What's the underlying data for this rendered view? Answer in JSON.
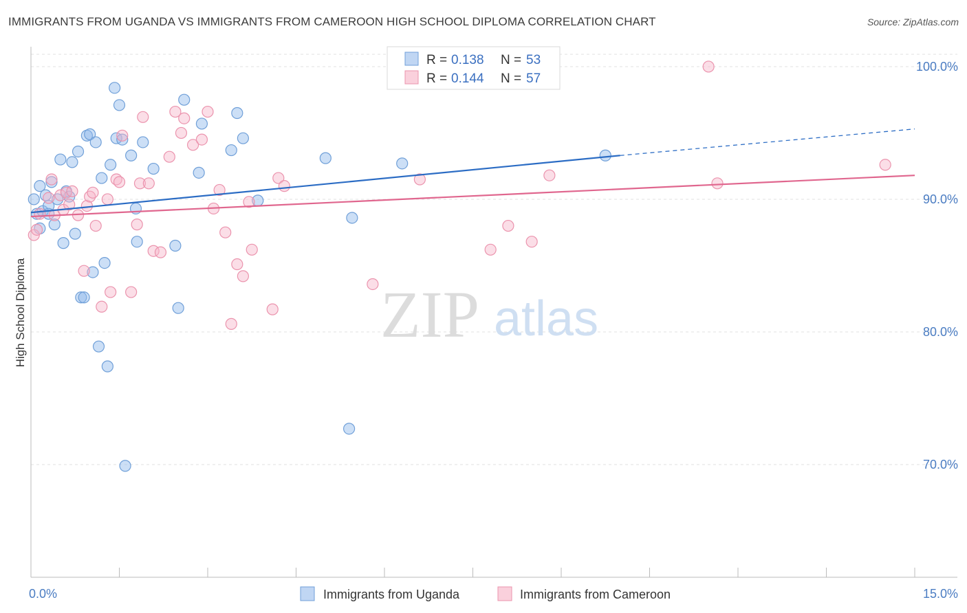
{
  "title": "IMMIGRANTS FROM UGANDA VS IMMIGRANTS FROM CAMEROON HIGH SCHOOL DIPLOMA CORRELATION CHART",
  "source": "Source: ZipAtlas.com",
  "watermark": {
    "zip": "ZIP",
    "atlas": "atlas"
  },
  "chart_data": {
    "type": "scatter",
    "ylabel": "High School Diploma",
    "xlim": [
      0,
      15
    ],
    "ylim": [
      61.5,
      101.5
    ],
    "x_tick_labels": [
      {
        "value": 0,
        "label": "0.0%"
      },
      {
        "value": 15,
        "label": "15.0%"
      }
    ],
    "y_tick_labels": [
      {
        "value": 100,
        "label": "100.0%"
      },
      {
        "value": 90,
        "label": "90.0%"
      },
      {
        "value": 80,
        "label": "80.0%"
      },
      {
        "value": 70,
        "label": "70.0%"
      }
    ],
    "legend_position": "bottom-center",
    "stats_box_position": "top-center",
    "series": [
      {
        "name": "Immigrants from Uganda",
        "color": "#8fb7ea",
        "stroke": "#6f9fd8",
        "line_color": "#2b6cc4",
        "r_label": "R =",
        "r_value": "0.138",
        "n_label": "N =",
        "n_value": "53",
        "trend": {
          "x": [
            0,
            10
          ],
          "y": [
            89.0,
            93.3
          ],
          "dashed_to": [
            15,
            95.3
          ]
        },
        "points": [
          [
            0.05,
            90.0
          ],
          [
            0.1,
            88.9
          ],
          [
            0.15,
            91.0
          ],
          [
            0.2,
            89.1
          ],
          [
            0.25,
            90.3
          ],
          [
            0.3,
            89.5
          ],
          [
            0.35,
            91.3
          ],
          [
            0.4,
            88.1
          ],
          [
            0.45,
            90.0
          ],
          [
            0.5,
            93.0
          ],
          [
            0.55,
            86.7
          ],
          [
            0.6,
            90.6
          ],
          [
            0.65,
            90.2
          ],
          [
            0.7,
            92.8
          ],
          [
            0.75,
            87.4
          ],
          [
            0.8,
            93.6
          ],
          [
            0.85,
            82.6
          ],
          [
            0.9,
            82.6
          ],
          [
            0.95,
            94.8
          ],
          [
            1.0,
            94.9
          ],
          [
            1.1,
            94.3
          ],
          [
            1.15,
            78.9
          ],
          [
            1.2,
            91.6
          ],
          [
            1.25,
            85.2
          ],
          [
            1.3,
            77.4
          ],
          [
            1.35,
            92.6
          ],
          [
            1.42,
            98.4
          ],
          [
            1.45,
            94.6
          ],
          [
            1.5,
            97.1
          ],
          [
            1.55,
            94.5
          ],
          [
            1.6,
            69.9
          ],
          [
            1.7,
            93.3
          ],
          [
            1.78,
            89.3
          ],
          [
            1.8,
            86.8
          ],
          [
            1.9,
            94.3
          ],
          [
            2.08,
            92.3
          ],
          [
            2.45,
            86.5
          ],
          [
            2.5,
            81.8
          ],
          [
            2.6,
            97.5
          ],
          [
            2.85,
            92.0
          ],
          [
            2.9,
            95.7
          ],
          [
            3.4,
            93.7
          ],
          [
            3.5,
            96.5
          ],
          [
            3.6,
            94.6
          ],
          [
            3.85,
            89.9
          ],
          [
            5.0,
            93.1
          ],
          [
            5.4,
            72.7
          ],
          [
            5.45,
            88.6
          ],
          [
            6.3,
            92.7
          ],
          [
            9.75,
            93.3
          ],
          [
            1.05,
            84.5
          ],
          [
            0.15,
            87.8
          ],
          [
            0.3,
            88.9
          ]
        ]
      },
      {
        "name": "Immigrants from Cameroon",
        "color": "#f7b6c9",
        "stroke": "#eb93ad",
        "line_color": "#e0668e",
        "r_label": "R =",
        "r_value": "0.144",
        "n_label": "N =",
        "n_value": "57",
        "trend": {
          "x": [
            0,
            15
          ],
          "y": [
            88.7,
            91.8
          ]
        },
        "points": [
          [
            0.05,
            87.3
          ],
          [
            0.1,
            87.7
          ],
          [
            0.15,
            88.9
          ],
          [
            0.3,
            90.1
          ],
          [
            0.35,
            91.5
          ],
          [
            0.4,
            88.8
          ],
          [
            0.5,
            90.3
          ],
          [
            0.55,
            89.2
          ],
          [
            0.6,
            90.5
          ],
          [
            0.65,
            89.6
          ],
          [
            0.7,
            90.6
          ],
          [
            0.8,
            88.8
          ],
          [
            0.9,
            84.6
          ],
          [
            0.95,
            89.5
          ],
          [
            1.0,
            90.2
          ],
          [
            1.05,
            90.5
          ],
          [
            1.1,
            88.0
          ],
          [
            1.2,
            81.9
          ],
          [
            1.3,
            90.0
          ],
          [
            1.35,
            83.0
          ],
          [
            1.45,
            91.5
          ],
          [
            1.5,
            91.3
          ],
          [
            1.55,
            94.8
          ],
          [
            1.7,
            83.0
          ],
          [
            1.8,
            88.1
          ],
          [
            1.85,
            91.2
          ],
          [
            1.9,
            96.2
          ],
          [
            2.0,
            91.2
          ],
          [
            2.08,
            86.1
          ],
          [
            2.2,
            86.0
          ],
          [
            2.35,
            93.2
          ],
          [
            2.45,
            96.6
          ],
          [
            2.55,
            95.0
          ],
          [
            2.6,
            96.1
          ],
          [
            2.75,
            94.1
          ],
          [
            2.9,
            94.5
          ],
          [
            3.0,
            96.6
          ],
          [
            3.1,
            89.3
          ],
          [
            3.2,
            90.7
          ],
          [
            3.3,
            87.5
          ],
          [
            3.4,
            80.6
          ],
          [
            3.5,
            85.1
          ],
          [
            3.6,
            84.2
          ],
          [
            3.7,
            89.8
          ],
          [
            3.75,
            86.2
          ],
          [
            4.1,
            81.7
          ],
          [
            4.2,
            91.6
          ],
          [
            4.3,
            91.0
          ],
          [
            5.8,
            83.6
          ],
          [
            6.6,
            91.5
          ],
          [
            7.8,
            86.2
          ],
          [
            8.1,
            88.0
          ],
          [
            8.5,
            86.8
          ],
          [
            8.8,
            91.8
          ],
          [
            11.5,
            100.0
          ],
          [
            11.65,
            91.2
          ],
          [
            14.5,
            92.6
          ]
        ]
      }
    ]
  }
}
